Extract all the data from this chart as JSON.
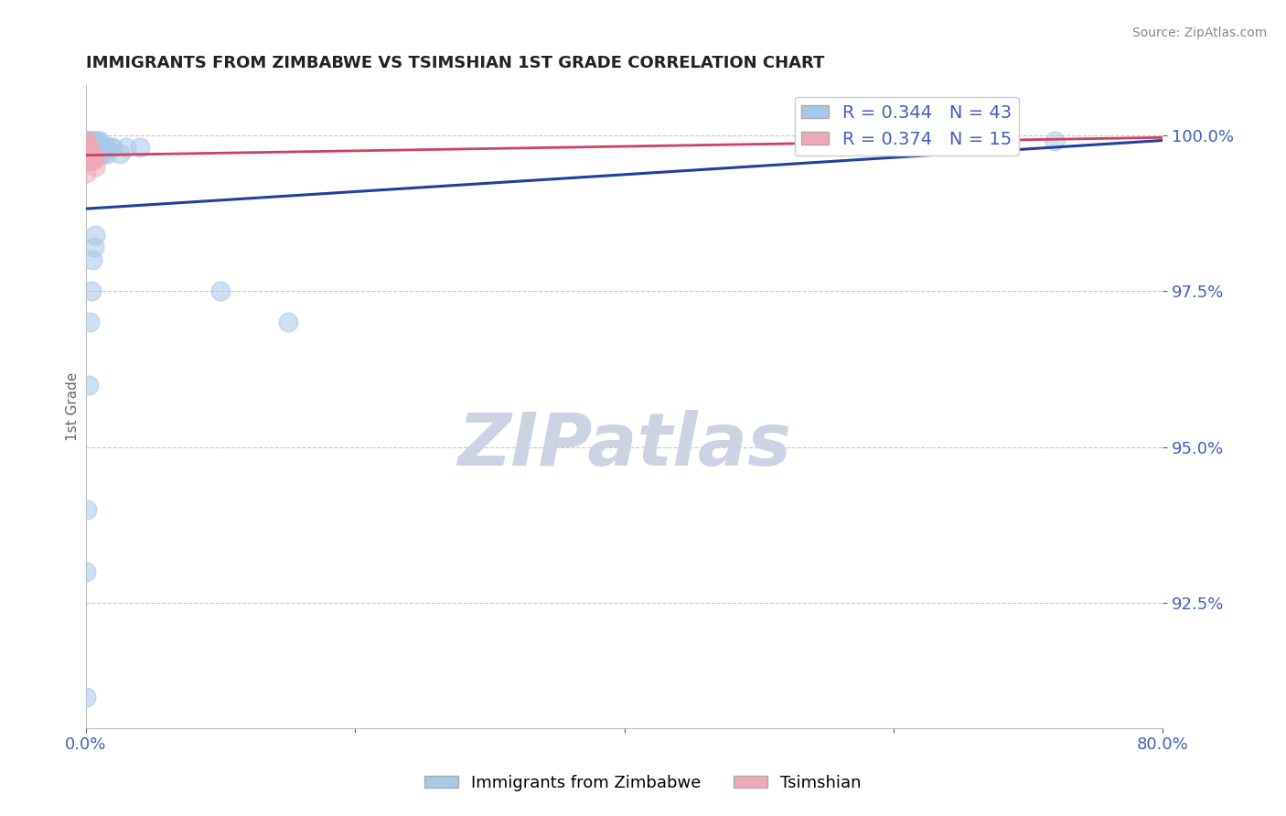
{
  "title": "IMMIGRANTS FROM ZIMBABWE VS TSIMSHIAN 1ST GRADE CORRELATION CHART",
  "source": "Source: ZipAtlas.com",
  "ylabel": "1st Grade",
  "r_blue": 0.344,
  "n_blue": 43,
  "r_pink": 0.374,
  "n_pink": 15,
  "blue_color": "#a8c8e8",
  "pink_color": "#f0a8b8",
  "trend_blue": "#2040a0",
  "trend_pink": "#d04060",
  "legend_label_blue": "Immigrants from Zimbabwe",
  "legend_label_pink": "Tsimshian",
  "axis_color": "#4060c0",
  "xlim": [
    0.0,
    0.8
  ],
  "ylim": [
    0.905,
    1.008
  ],
  "yticks": [
    0.925,
    0.95,
    0.975,
    1.0
  ],
  "ytick_labels": [
    "92.5%",
    "95.0%",
    "97.5%",
    "100.0%"
  ],
  "blue_x": [
    0.0,
    0.0,
    0.0,
    0.0,
    0.0,
    0.0,
    0.0,
    0.001,
    0.001,
    0.001,
    0.001,
    0.002,
    0.002,
    0.002,
    0.003,
    0.003,
    0.003,
    0.004,
    0.004,
    0.005,
    0.005,
    0.006,
    0.006,
    0.007,
    0.007,
    0.008,
    0.009,
    0.01,
    0.01,
    0.011,
    0.012,
    0.013,
    0.015,
    0.016,
    0.018,
    0.02,
    0.025,
    0.03,
    0.04,
    0.1,
    0.15,
    0.6,
    0.72
  ],
  "blue_y": [
    0.999,
    0.999,
    0.999,
    0.998,
    0.997,
    0.93,
    0.91,
    0.999,
    0.998,
    0.996,
    0.94,
    0.999,
    0.997,
    0.96,
    0.999,
    0.998,
    0.97,
    0.999,
    0.975,
    0.999,
    0.98,
    0.999,
    0.982,
    0.999,
    0.984,
    0.999,
    0.998,
    0.999,
    0.997,
    0.998,
    0.998,
    0.997,
    0.998,
    0.997,
    0.998,
    0.998,
    0.997,
    0.998,
    0.998,
    0.975,
    0.97,
    0.999,
    0.999
  ],
  "pink_x": [
    0.0,
    0.0,
    0.0,
    0.0,
    0.001,
    0.001,
    0.002,
    0.002,
    0.003,
    0.004,
    0.005,
    0.006,
    0.007,
    0.6,
    0.65
  ],
  "pink_y": [
    0.999,
    0.998,
    0.996,
    0.994,
    0.999,
    0.997,
    0.998,
    0.996,
    0.997,
    0.996,
    0.997,
    0.996,
    0.995,
    0.999,
    0.999
  ],
  "watermark_text": "ZIPatlas",
  "watermark_color": "#ccd4e4",
  "grid_color": "#c8c8c8"
}
